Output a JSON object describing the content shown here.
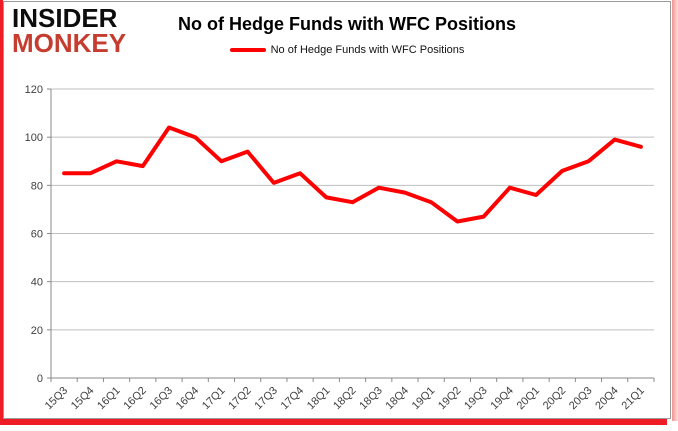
{
  "logo": {
    "line1": "INSIDER",
    "line2": "MONKEY"
  },
  "title": "No of Hedge Funds with WFC Positions",
  "legend": {
    "label": "No of Hedge Funds with WFC Positions"
  },
  "colors": {
    "line": "#ff0000",
    "accent_frame": "#ee1c25",
    "logo_red": "#c63d2f",
    "grid": "#bfbfbf",
    "axis": "#898989",
    "label": "#404040"
  },
  "chart_data": {
    "type": "line",
    "title": "No of Hedge Funds with WFC Positions",
    "series_name": "No of Hedge Funds with WFC Positions",
    "categories": [
      "15Q3",
      "15Q4",
      "16Q1",
      "16Q2",
      "16Q3",
      "16Q4",
      "17Q1",
      "17Q2",
      "17Q3",
      "17Q4",
      "18Q1",
      "18Q2",
      "18Q3",
      "18Q4",
      "19Q1",
      "19Q2",
      "19Q3",
      "19Q4",
      "20Q1",
      "20Q2",
      "20Q3",
      "20Q4",
      "21Q1"
    ],
    "values": [
      85,
      85,
      90,
      88,
      104,
      100,
      90,
      94,
      81,
      85,
      75,
      73,
      79,
      77,
      73,
      65,
      67,
      79,
      76,
      86,
      90,
      99,
      96
    ],
    "xlabel": "",
    "ylabel": "",
    "ylim": [
      0,
      120
    ],
    "yticks": [
      0,
      20,
      40,
      60,
      80,
      100,
      120
    ],
    "grid": true,
    "legend_position": "top",
    "line_color": "#ff0000"
  }
}
